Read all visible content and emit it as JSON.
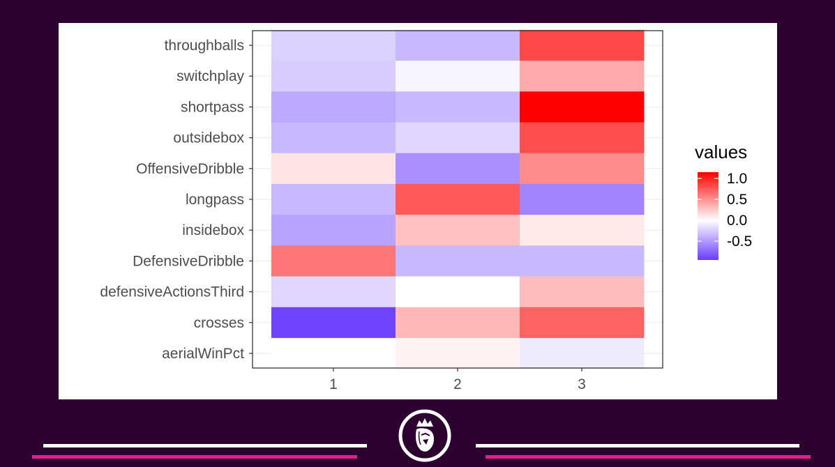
{
  "chart_data": {
    "type": "heatmap",
    "x_categories": [
      "1",
      "2",
      "3"
    ],
    "y_categories": [
      "throughballs",
      "switchplay",
      "shortpass",
      "outsidebox",
      "OffensiveDribble",
      "longpass",
      "insidebox",
      "DefensiveDribble",
      "defensiveActionsThird",
      "crosses",
      "aerialWinPct"
    ],
    "values": [
      [
        -0.22,
        -0.35,
        0.82
      ],
      [
        -0.25,
        -0.05,
        0.38
      ],
      [
        -0.42,
        -0.35,
        1.15
      ],
      [
        -0.35,
        -0.2,
        0.8
      ],
      [
        0.12,
        -0.55,
        0.52
      ],
      [
        -0.35,
        0.75,
        -0.6
      ],
      [
        -0.45,
        0.28,
        0.1
      ],
      [
        0.62,
        -0.35,
        -0.35
      ],
      [
        -0.2,
        0.0,
        0.3
      ],
      [
        -0.92,
        0.32,
        0.7
      ],
      [
        0.0,
        0.06,
        -0.1
      ]
    ],
    "legend": {
      "title": "values",
      "ticks": [
        1.0,
        0.5,
        0.0,
        -0.5
      ],
      "tick_labels": [
        "1.0",
        "0.5",
        "0.0",
        "-0.5"
      ],
      "range": [
        -0.95,
        1.15
      ],
      "colors": {
        "low": "#6a3dff",
        "mid": "#ffffff",
        "high": "#ff0000"
      }
    },
    "xlabel": "",
    "ylabel": "",
    "grid": true
  },
  "colors": {
    "background": "#2c002f",
    "panel": "#ffffff",
    "rule_white": "#ffffff",
    "rule_pink": "#e0218a"
  },
  "logo": {
    "icon": "premier-league-lion-icon"
  }
}
